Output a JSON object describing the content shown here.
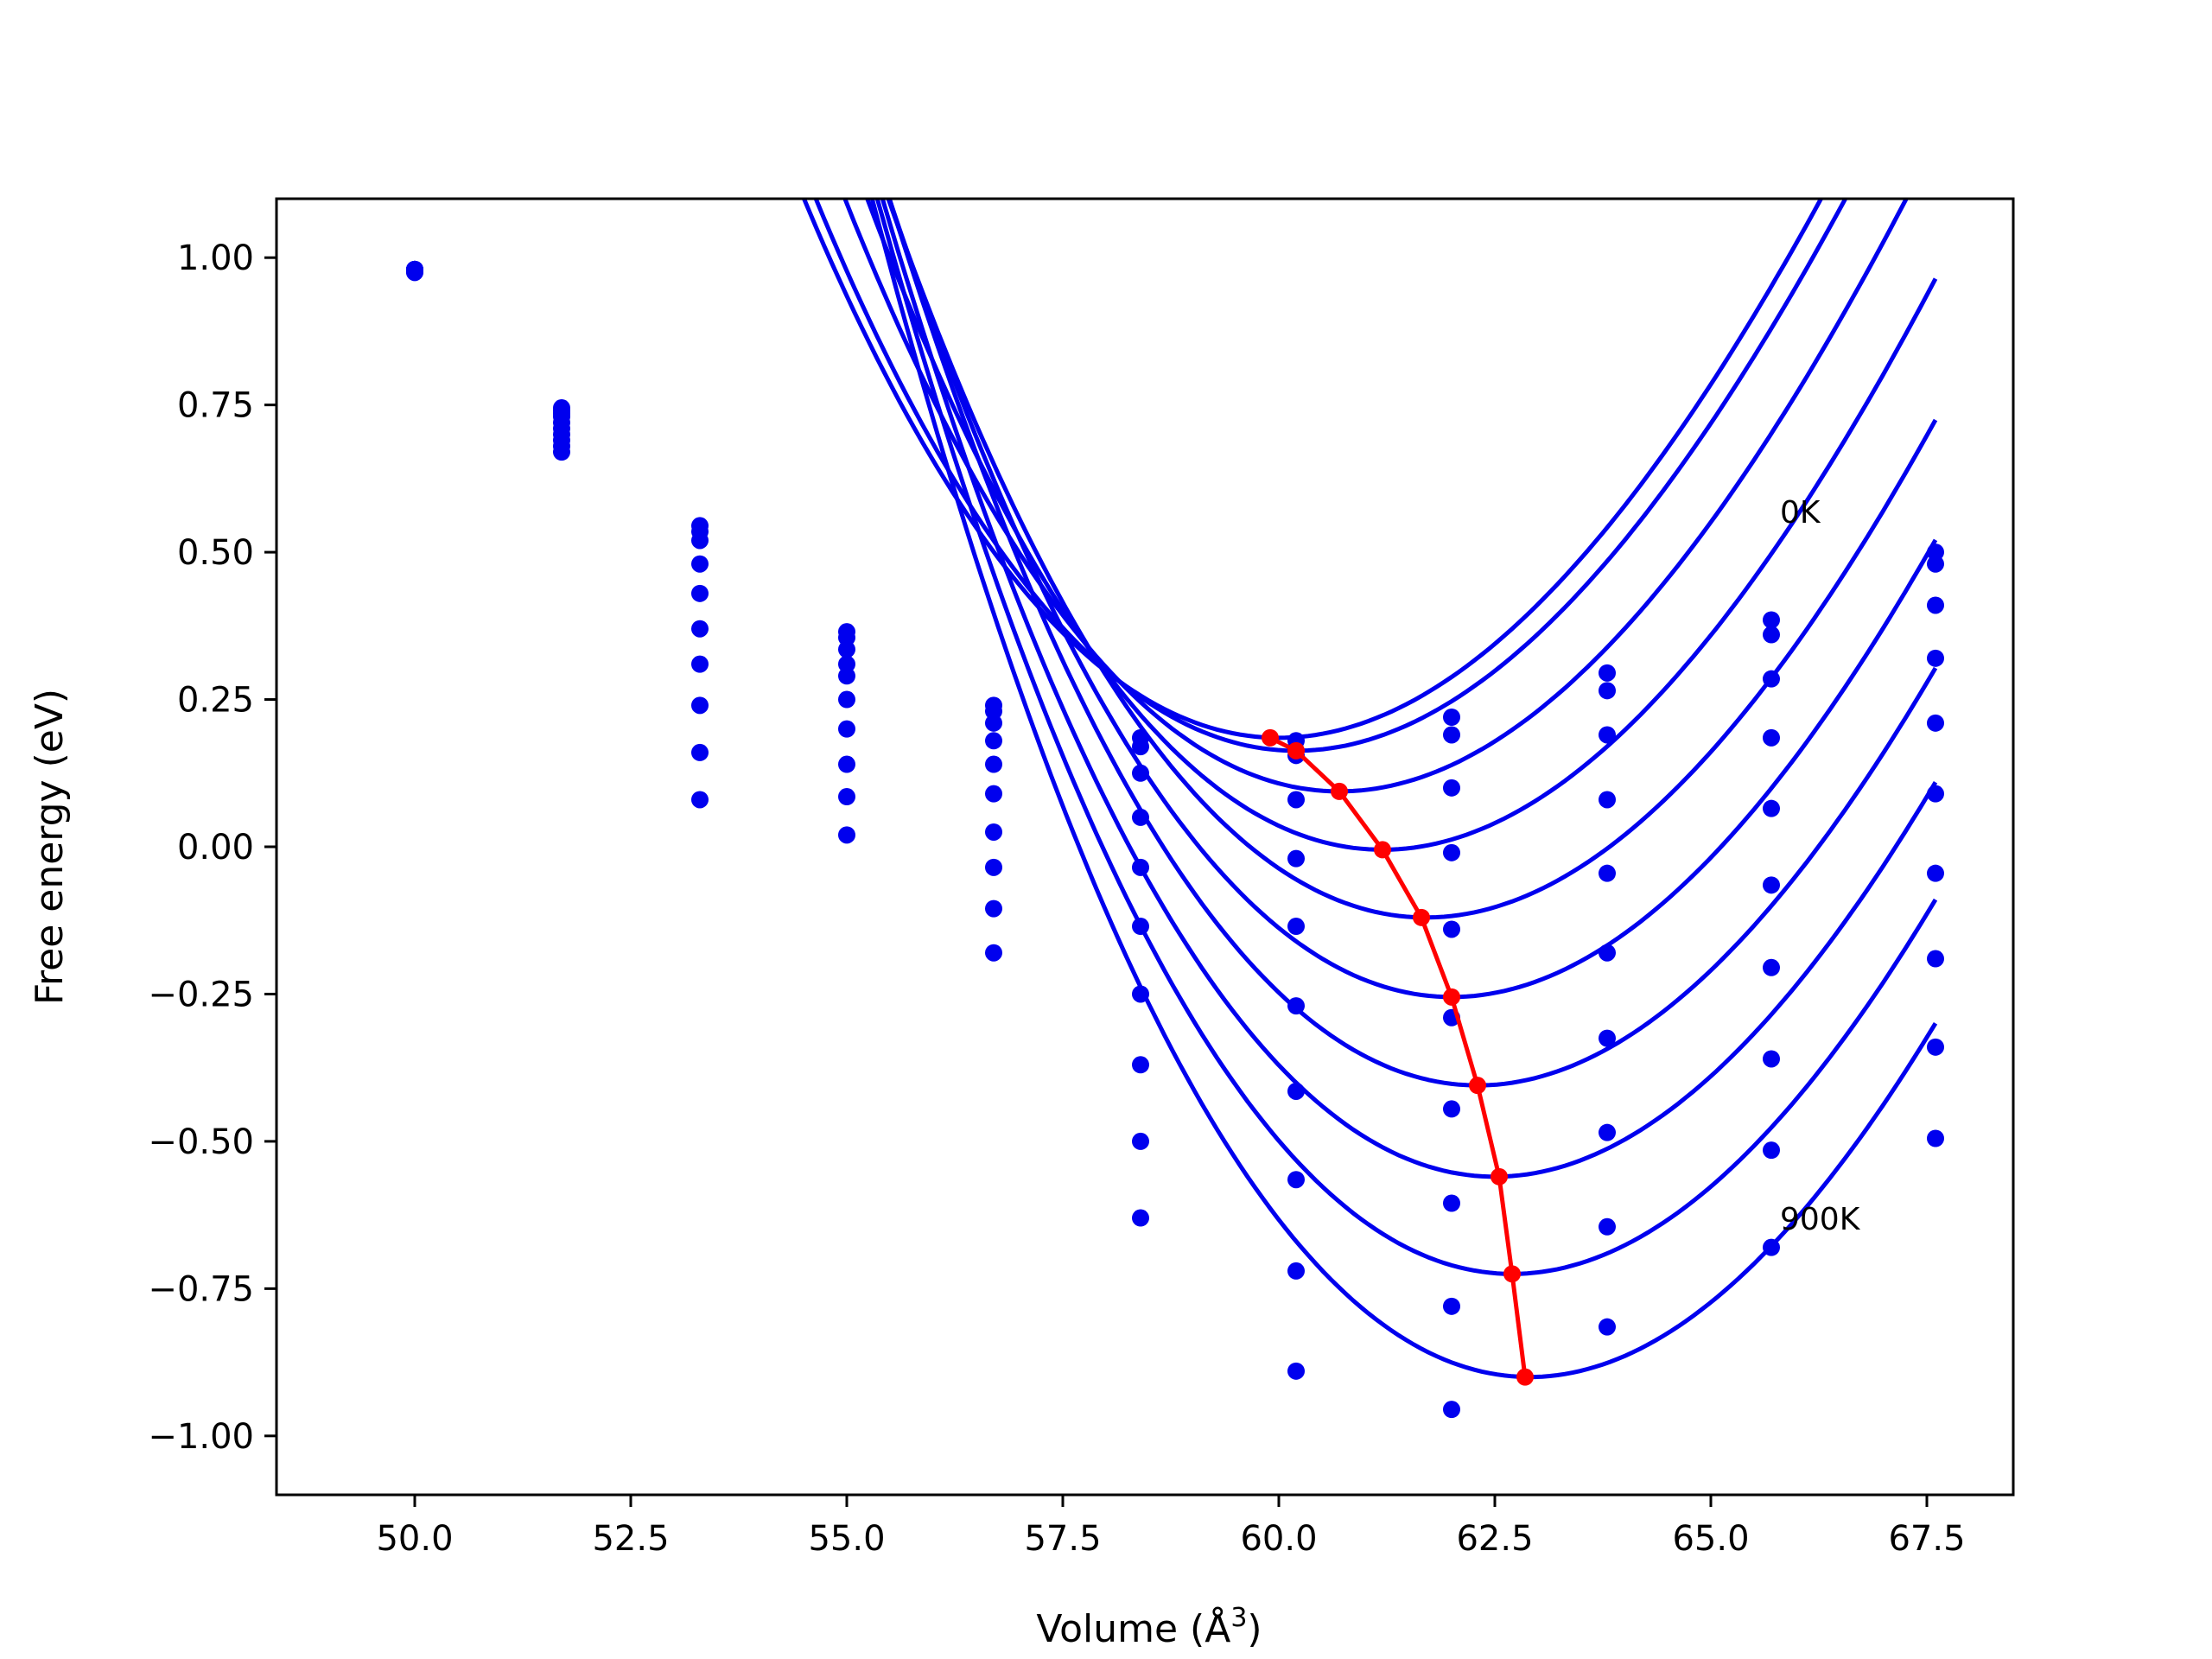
{
  "chart_data": {
    "type": "line",
    "xlabel": "Volume (Å",
    "xlabel_sup": "3",
    "xlabel_close": ")",
    "ylabel": "Free energy (eV)",
    "xlim": [
      48.4,
      68.5
    ],
    "ylim": [
      -1.1,
      1.1
    ],
    "xticks": [
      50.0,
      52.5,
      55.0,
      57.5,
      60.0,
      62.5,
      65.0,
      67.5
    ],
    "xtick_labels": [
      "50.0",
      "52.5",
      "55.0",
      "57.5",
      "60.0",
      "62.5",
      "65.0",
      "67.5"
    ],
    "yticks": [
      1.0,
      0.75,
      0.5,
      0.25,
      0.0,
      -0.25,
      -0.5,
      -0.75,
      -1.0
    ],
    "ytick_labels": [
      "1.00",
      "0.75",
      "0.50",
      "0.25",
      "0.00",
      "−0.25",
      "−0.50",
      "−0.75",
      "−1.00"
    ],
    "grid": false,
    "colors": {
      "fit": "#0000ee",
      "points": "#0000ee",
      "minima": "#ff0000",
      "frame": "#000000"
    },
    "annotations": [
      {
        "text": "0K",
        "x": 65.8,
        "y": 0.55
      },
      {
        "text": "900K",
        "x": 65.8,
        "y": -0.65
      }
    ],
    "volumes": [
      50.0,
      51.7,
      53.3,
      55.0,
      56.7,
      58.4,
      60.2,
      62.0,
      63.8,
      65.7,
      67.6
    ],
    "fit_x_range": [
      50.1,
      67.6
    ],
    "fits": [
      {
        "x0": 60.0,
        "e0": 0.185,
        "b": 2.7,
        "c": -0.06
      },
      {
        "x0": 60.2,
        "e0": 0.163,
        "b": 2.7,
        "c": -0.06
      },
      {
        "x0": 60.7,
        "e0": 0.094,
        "b": 2.73,
        "c": -0.06
      },
      {
        "x0": 61.2,
        "e0": -0.005,
        "b": 2.75,
        "c": -0.06
      },
      {
        "x0": 61.7,
        "e0": -0.12,
        "b": 2.78,
        "c": -0.06
      },
      {
        "x0": 62.0,
        "e0": -0.255,
        "b": 2.81,
        "c": -0.06
      },
      {
        "x0": 62.3,
        "e0": -0.405,
        "b": 2.84,
        "c": -0.06
      },
      {
        "x0": 62.5,
        "e0": -0.56,
        "b": 2.88,
        "c": -0.06
      },
      {
        "x0": 62.7,
        "e0": -0.725,
        "b": 2.94,
        "c": -0.06
      },
      {
        "x0": 62.9,
        "e0": -0.9,
        "b": 3.0,
        "c": -0.06
      }
    ],
    "series": [
      {
        "y": [
          0.975,
          0.745,
          0.545,
          0.365,
          0.24,
          0.185,
          0.18,
          0.22,
          0.295,
          0.385,
          0.5
        ]
      },
      {
        "y": [
          0.975,
          0.74,
          0.535,
          0.355,
          0.23,
          0.17,
          0.155,
          0.19,
          0.265,
          0.36,
          0.48
        ]
      },
      {
        "y": [
          0.98,
          0.735,
          0.52,
          0.335,
          0.21,
          0.125,
          0.08,
          0.1,
          0.19,
          0.285,
          0.41
        ]
      },
      {
        "y": [
          0.98,
          0.73,
          0.48,
          0.31,
          0.18,
          0.05,
          -0.02,
          -0.01,
          0.08,
          0.185,
          0.32
        ]
      },
      {
        "y": [
          0.98,
          0.72,
          0.43,
          0.29,
          0.14,
          -0.035,
          -0.135,
          -0.14,
          -0.045,
          0.065,
          0.21
        ]
      },
      {
        "y": [
          0.98,
          0.71,
          0.37,
          0.25,
          0.09,
          -0.135,
          -0.27,
          -0.29,
          -0.18,
          -0.065,
          0.09
        ]
      },
      {
        "y": [
          0.98,
          0.7,
          0.31,
          0.2,
          0.025,
          -0.25,
          -0.415,
          -0.445,
          -0.325,
          -0.205,
          -0.045
        ]
      },
      {
        "y": [
          0.98,
          0.69,
          0.24,
          0.14,
          -0.035,
          -0.37,
          -0.565,
          -0.605,
          -0.485,
          -0.36,
          -0.19
        ]
      },
      {
        "y": [
          0.98,
          0.68,
          0.16,
          0.085,
          -0.105,
          -0.5,
          -0.72,
          -0.78,
          -0.645,
          -0.515,
          -0.34
        ]
      },
      {
        "y": [
          0.98,
          0.67,
          0.08,
          0.02,
          -0.18,
          -0.63,
          -0.89,
          -0.955,
          -0.815,
          -0.68,
          -0.495
        ]
      }
    ],
    "minima": {
      "x": [
        59.9,
        60.2,
        60.7,
        61.2,
        61.65,
        62.0,
        62.3,
        62.55,
        62.7,
        62.85
      ],
      "y": [
        0.185,
        0.163,
        0.094,
        -0.005,
        -0.12,
        -0.255,
        -0.405,
        -0.56,
        -0.725,
        -0.9
      ]
    }
  }
}
